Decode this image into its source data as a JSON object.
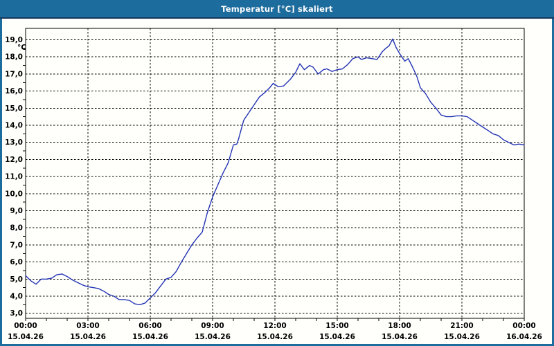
{
  "window": {
    "title": "Temperatur [°C] skaliert"
  },
  "colors": {
    "titlebar": "#1d6c9e",
    "titlebar_line": "#17375e",
    "plot_background": "#fffffc",
    "grid": "#000000",
    "axis_text": "#000000",
    "series_line": "#2233b3",
    "title_text": "#ffffff"
  },
  "chart_data": {
    "type": "line",
    "title": "Temperatur [°C] skaliert",
    "unit_label": "°C",
    "xlabel": "",
    "ylabel": "°C",
    "grid": "dashed",
    "legend": "none",
    "ylim": [
      2.7,
      19.7
    ],
    "y_grid_min": 3,
    "y_grid_max": 19,
    "y_grid_step": 1,
    "y_minor_tick_step": 0.5,
    "x_hours_min": 0,
    "x_hours_max": 24,
    "x_grid_step_hours": 3,
    "x_minor_tick_step_hours": 1,
    "y_ticks": [
      "19,0",
      "18,0",
      "17,0",
      "16,0",
      "15,0",
      "14,0",
      "13,0",
      "12,0",
      "11,0",
      "10,0",
      "9,0",
      "8,0",
      "7,0",
      "6,0",
      "5,0",
      "4,0",
      "3,0"
    ],
    "x_ticks": [
      {
        "time": "00:00",
        "date": "15.04.26"
      },
      {
        "time": "03:00",
        "date": "15.04.26"
      },
      {
        "time": "06:00",
        "date": "15.04.26"
      },
      {
        "time": "09:00",
        "date": "15.04.26"
      },
      {
        "time": "12:00",
        "date": "15.04.26"
      },
      {
        "time": "15:00",
        "date": "15.04.26"
      },
      {
        "time": "18:00",
        "date": "15.04.26"
      },
      {
        "time": "21:00",
        "date": "15.04.26"
      },
      {
        "time": "00:00",
        "date": "16.04.26"
      }
    ],
    "series": [
      {
        "name": "Temperatur",
        "color": "#2233b3",
        "points": [
          [
            "00:00",
            5.2
          ],
          [
            "00:15",
            4.9
          ],
          [
            "00:30",
            4.7
          ],
          [
            "00:45",
            5.0
          ],
          [
            "01:00",
            5.0
          ],
          [
            "01:15",
            5.05
          ],
          [
            "01:30",
            5.25
          ],
          [
            "01:45",
            5.3
          ],
          [
            "02:00",
            5.15
          ],
          [
            "02:15",
            4.95
          ],
          [
            "02:30",
            4.8
          ],
          [
            "02:45",
            4.65
          ],
          [
            "03:00",
            4.55
          ],
          [
            "03:15",
            4.5
          ],
          [
            "03:30",
            4.45
          ],
          [
            "03:45",
            4.3
          ],
          [
            "04:00",
            4.1
          ],
          [
            "04:15",
            4.0
          ],
          [
            "04:30",
            3.8
          ],
          [
            "04:45",
            3.8
          ],
          [
            "05:00",
            3.75
          ],
          [
            "05:15",
            3.55
          ],
          [
            "05:30",
            3.5
          ],
          [
            "05:45",
            3.6
          ],
          [
            "06:00",
            3.9
          ],
          [
            "06:15",
            4.2
          ],
          [
            "06:30",
            4.6
          ],
          [
            "06:45",
            5.0
          ],
          [
            "07:00",
            5.1
          ],
          [
            "07:15",
            5.45
          ],
          [
            "07:30",
            6.0
          ],
          [
            "07:45",
            6.5
          ],
          [
            "08:00",
            7.0
          ],
          [
            "08:15",
            7.4
          ],
          [
            "08:30",
            7.75
          ],
          [
            "08:45",
            8.9
          ],
          [
            "09:00",
            9.8
          ],
          [
            "09:15",
            10.5
          ],
          [
            "09:30",
            11.2
          ],
          [
            "09:45",
            11.8
          ],
          [
            "10:00",
            12.85
          ],
          [
            "10:10",
            12.9
          ],
          [
            "10:15",
            13.2
          ],
          [
            "10:30",
            14.3
          ],
          [
            "10:45",
            14.75
          ],
          [
            "11:00",
            15.2
          ],
          [
            "11:15",
            15.65
          ],
          [
            "11:30",
            15.9
          ],
          [
            "11:45",
            16.2
          ],
          [
            "11:55",
            16.45
          ],
          [
            "12:10",
            16.25
          ],
          [
            "12:25",
            16.3
          ],
          [
            "12:45",
            16.7
          ],
          [
            "13:00",
            17.1
          ],
          [
            "13:12",
            17.6
          ],
          [
            "13:25",
            17.25
          ],
          [
            "13:40",
            17.5
          ],
          [
            "13:50",
            17.4
          ],
          [
            "14:05",
            17.0
          ],
          [
            "14:20",
            17.25
          ],
          [
            "14:30",
            17.3
          ],
          [
            "14:45",
            17.15
          ],
          [
            "15:00",
            17.25
          ],
          [
            "15:15",
            17.3
          ],
          [
            "15:30",
            17.55
          ],
          [
            "15:45",
            17.9
          ],
          [
            "16:00",
            18.0
          ],
          [
            "16:10",
            17.85
          ],
          [
            "16:25",
            17.95
          ],
          [
            "16:40",
            17.9
          ],
          [
            "16:55",
            17.85
          ],
          [
            "17:10",
            18.3
          ],
          [
            "17:20",
            18.5
          ],
          [
            "17:30",
            18.65
          ],
          [
            "17:40",
            19.05
          ],
          [
            "17:50",
            18.55
          ],
          [
            "18:00",
            18.2
          ],
          [
            "18:15",
            17.75
          ],
          [
            "18:25",
            17.9
          ],
          [
            "18:40",
            17.3
          ],
          [
            "18:50",
            16.85
          ],
          [
            "19:00",
            16.2
          ],
          [
            "19:15",
            15.85
          ],
          [
            "19:30",
            15.35
          ],
          [
            "19:45",
            15.0
          ],
          [
            "20:00",
            14.6
          ],
          [
            "20:15",
            14.5
          ],
          [
            "20:30",
            14.5
          ],
          [
            "20:45",
            14.55
          ],
          [
            "21:00",
            14.55
          ],
          [
            "21:15",
            14.5
          ],
          [
            "21:30",
            14.3
          ],
          [
            "21:45",
            14.1
          ],
          [
            "22:00",
            13.9
          ],
          [
            "22:15",
            13.7
          ],
          [
            "22:30",
            13.5
          ],
          [
            "22:45",
            13.4
          ],
          [
            "23:00",
            13.15
          ],
          [
            "23:15",
            13.0
          ],
          [
            "23:30",
            12.85
          ],
          [
            "23:45",
            12.9
          ],
          [
            "24:00",
            12.85
          ]
        ]
      }
    ]
  }
}
